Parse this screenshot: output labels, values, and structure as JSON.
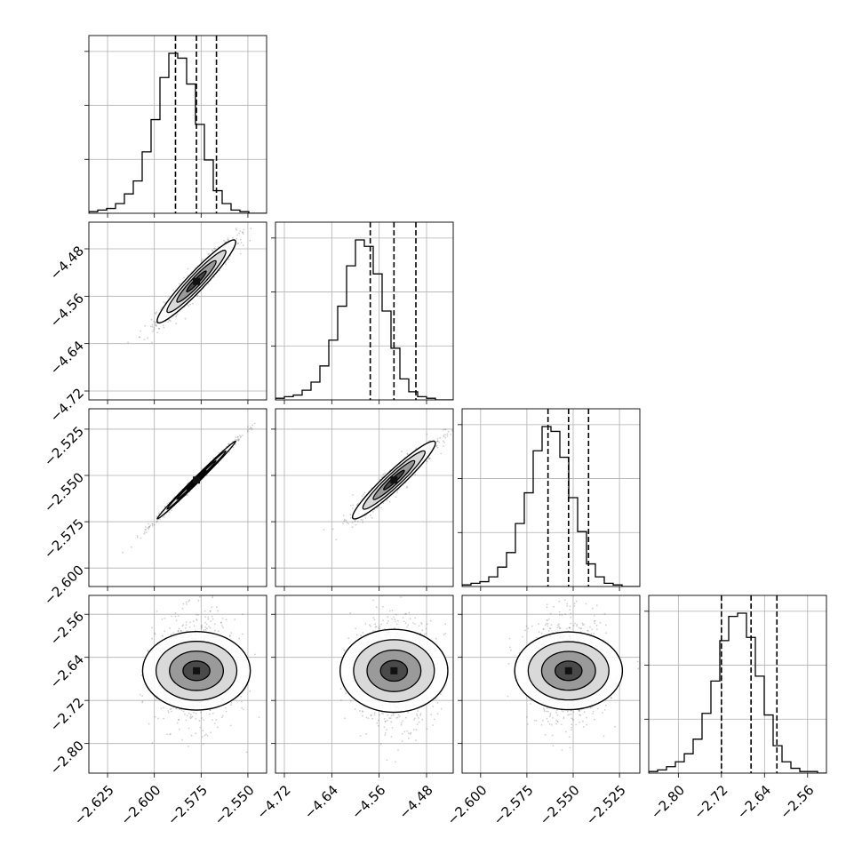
{
  "chart_data": {
    "type": "corner",
    "grid": true,
    "n_params": 4,
    "params": [
      {
        "range": [
          -2.635,
          -2.54
        ],
        "ticks": [
          -2.625,
          -2.6,
          -2.575,
          -2.55
        ],
        "tick_labels": [
          "−2.625",
          "−2.600",
          "−2.575",
          "−2.550"
        ],
        "mean": -2.5775,
        "sd": 0.0105,
        "quantiles": [
          -2.5887,
          -2.5775,
          -2.5668
        ]
      },
      {
        "range": [
          -4.735,
          -4.435
        ],
        "ticks": [
          -4.72,
          -4.64,
          -4.56,
          -4.48
        ],
        "tick_labels": [
          "−4.72",
          "−4.64",
          "−4.56",
          "−4.48"
        ],
        "mean": -4.535,
        "sd": 0.035,
        "quantiles": [
          -4.575,
          -4.535,
          -4.498
        ]
      },
      {
        "range": [
          -2.61,
          -2.514
        ],
        "ticks": [
          -2.6,
          -2.575,
          -2.55,
          -2.525
        ],
        "tick_labels": [
          "−2.600",
          "−2.575",
          "−2.550",
          "−2.525"
        ],
        "mean": -2.5525,
        "sd": 0.0105,
        "quantiles": [
          -2.5636,
          -2.5525,
          -2.5417
        ]
      },
      {
        "range": [
          -2.855,
          -2.525
        ],
        "ticks": [
          -2.8,
          -2.72,
          -2.64,
          -2.56
        ],
        "tick_labels": [
          "−2.80",
          "−2.72",
          "−2.64",
          "−2.56"
        ],
        "mean": -2.665,
        "sd": 0.05,
        "quantiles": [
          -2.72,
          -2.665,
          -2.617
        ]
      }
    ],
    "correlations": {
      "1-0": 0.95,
      "2-0": 0.995,
      "2-1": 0.95,
      "3-0": 0.0,
      "3-1": 0.0,
      "3-2": 0.0
    },
    "histograms": [
      [
        1,
        2,
        3,
        6,
        12,
        20,
        38,
        58,
        84,
        99,
        96,
        80,
        55,
        33,
        14,
        6,
        2,
        1,
        0,
        0
      ],
      [
        1,
        2,
        3,
        6,
        11,
        21,
        37,
        58,
        83,
        99,
        95,
        78,
        55,
        32,
        13,
        5,
        2,
        1,
        0,
        0
      ],
      [
        1,
        2,
        3,
        6,
        12,
        21,
        39,
        58,
        84,
        99,
        96,
        80,
        55,
        34,
        14,
        6,
        2,
        1,
        0,
        0
      ],
      [
        1,
        2,
        4,
        7,
        12,
        21,
        37,
        57,
        82,
        97,
        99,
        84,
        60,
        36,
        17,
        7,
        3,
        1,
        1,
        0
      ]
    ]
  }
}
